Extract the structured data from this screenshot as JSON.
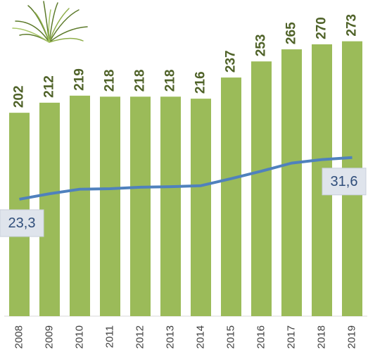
{
  "chart_data": {
    "type": "bar",
    "categories": [
      "2008",
      "2009",
      "2010",
      "2011",
      "2012",
      "2013",
      "2014",
      "2015",
      "2016",
      "2017",
      "2018",
      "2019"
    ],
    "series": [
      {
        "type": "bar",
        "color": "#9bbb59",
        "label_color": "#4f6228",
        "values": [
          202,
          212,
          219,
          218,
          218,
          218,
          216,
          237,
          253,
          265,
          270,
          273
        ]
      },
      {
        "type": "line",
        "axis": "y2",
        "color": "#4f81bd",
        "values": [
          23.3,
          24.4,
          25.3,
          25.4,
          25.7,
          25.8,
          26.0,
          27.4,
          28.9,
          30.5,
          31.2,
          31.6
        ],
        "value_labels": [
          "23,3",
          null,
          null,
          null,
          null,
          null,
          null,
          null,
          null,
          null,
          null,
          "31,6"
        ]
      }
    ],
    "ylim": [
      0,
      314
    ],
    "y2lim": [
      0,
      63
    ],
    "grid": false
  }
}
